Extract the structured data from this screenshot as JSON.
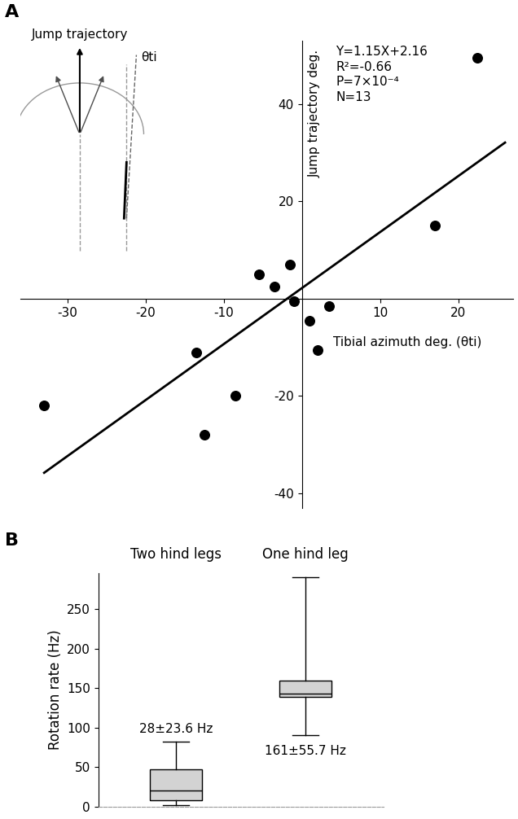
{
  "chart_data": [
    {
      "type": "scatter",
      "panel_label": "A",
      "x_label": "Tibial azimuth deg. (θti)",
      "y_label": "Jump trajectory deg.",
      "annotations": [
        "Y=1.15X+2.16",
        "R²=-0.66",
        "P=7×10⁻⁴",
        "N=13"
      ],
      "diagram_labels": [
        "Jump trajectory",
        "θti"
      ],
      "x": [
        -33,
        -13.5,
        -12.5,
        -8.5,
        -5.5,
        -3.5,
        -1.5,
        -1,
        1,
        2,
        3.5,
        17,
        22.5
      ],
      "values": [
        -22,
        -11,
        -28,
        -20,
        5,
        2.5,
        7,
        -0.5,
        -4.5,
        -10.5,
        -1.5,
        15,
        49.5
      ],
      "color": "#000000",
      "marker": "circle",
      "fit_line": {
        "x": [
          -33,
          26
        ],
        "values": [
          -35.8,
          32.1
        ]
      },
      "xlim": [
        -36,
        27
      ],
      "ylim": [
        -43,
        53
      ],
      "xticks": [
        -30,
        -20,
        -10,
        10,
        20
      ],
      "yticks": [
        -40,
        -20,
        20,
        40
      ]
    },
    {
      "type": "box",
      "panel_label": "B",
      "categories": [
        "Two hind legs",
        "One hind leg"
      ],
      "y_label": "Rotation rate (Hz)",
      "boxes": [
        {
          "whislo": 2,
          "q1": 8,
          "med": 21,
          "q3": 47,
          "whishi": 82
        },
        {
          "whislo": 90,
          "q1": 139,
          "med": 143,
          "q3": 159,
          "whishi": 290
        }
      ],
      "summary_labels": [
        "28±23.6 Hz",
        "161±55.7 Hz"
      ],
      "color": "#d3d3d3",
      "ylim": [
        0,
        295
      ],
      "yticks": [
        0,
        50,
        100,
        150,
        200,
        250
      ]
    }
  ]
}
